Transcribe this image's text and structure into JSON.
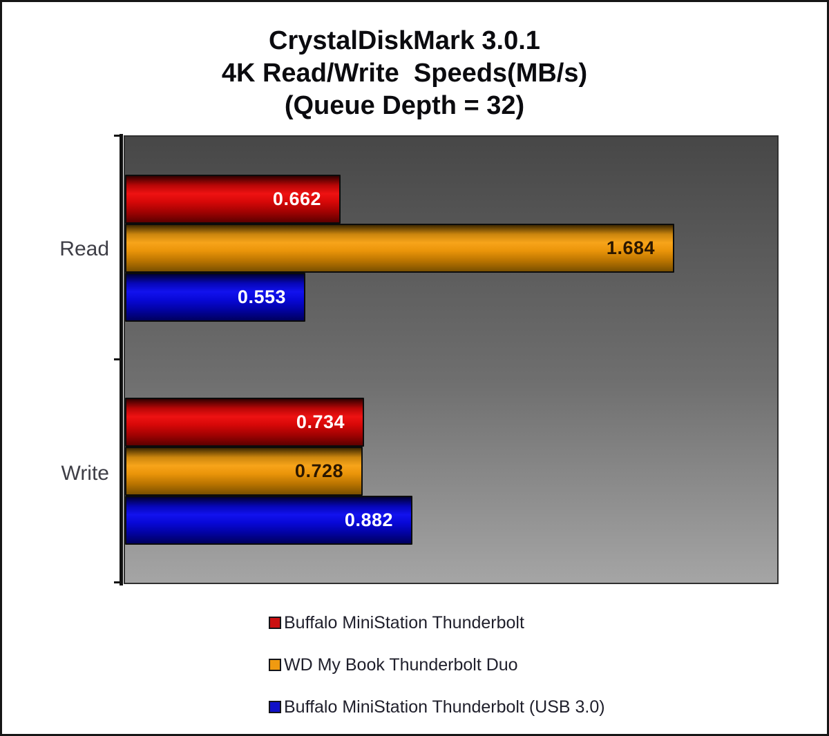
{
  "title": {
    "lines": [
      "CrystalDiskMark 3.0.1",
      "4K Read/Write  Speeds(MB/s)",
      "(Queue Depth = 32)"
    ]
  },
  "chart_data": {
    "type": "bar",
    "orientation": "horizontal",
    "title": "CrystalDiskMark 3.0.1 — 4K Read/Write Speeds(MB/s) (Queue Depth = 32)",
    "xlabel": "",
    "ylabel": "",
    "xlim": [
      0,
      2.0
    ],
    "grid": false,
    "legend_position": "bottom-left",
    "value_labels": "inside-end",
    "categories": [
      "Read",
      "Write"
    ],
    "series": [
      {
        "name": "Buffalo MiniStation Thunderbolt",
        "color": "#cc1010",
        "label_color": "#ffffff",
        "values": [
          0.662,
          0.734
        ]
      },
      {
        "name": "WD My Book Thunderbolt Duo",
        "color": "#f09a10",
        "label_color": "#2b1700",
        "values": [
          1.684,
          0.728
        ]
      },
      {
        "name": "Buffalo MiniStation Thunderbolt (USB 3.0)",
        "color": "#1010c8",
        "label_color": "#ffffff",
        "values": [
          0.553,
          0.882
        ]
      }
    ],
    "plot_background": {
      "top": "#474747",
      "bottom": "#a5a5a5"
    }
  }
}
